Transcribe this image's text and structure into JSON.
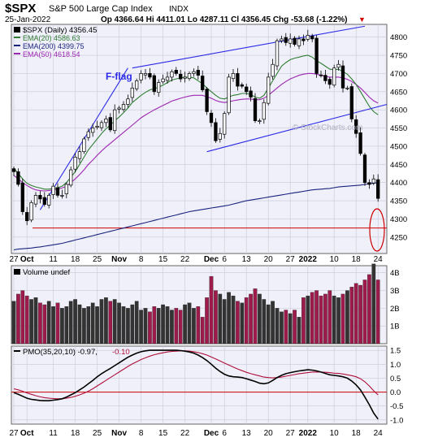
{
  "header": {
    "symbol": "$SPX",
    "name": "S&P 500 Large Cap Index",
    "exchange": "INDX",
    "date": "25-Jan-2022",
    "quote": "Op 4366.64  Hi 4411.01  Lo 4287.11  Cl 4356.45  Chg -53.68 (-1.22%)",
    "chg_arrow": "▼",
    "watermark": "© StockCharts.com"
  },
  "colors": {
    "bg": "#ffffff",
    "panel": "#f0f0fa",
    "grid": "#c8c8d8",
    "border": "#666666",
    "ema20": "#2e7d32",
    "ema200": "#1a237e",
    "ema50": "#9c27b0",
    "trend": "#2a2ae6",
    "support": "#cc0000",
    "vol_up": "#333333",
    "vol_down": "#9c1b4a",
    "pmo": "#000000",
    "pmo_signal": "#b0103a"
  },
  "chart_data": [
    {
      "type": "candlestick",
      "legend": [
        {
          "label": "$SPX (Daily) 4356.45",
          "color": "#000000"
        },
        {
          "label": "EMA(20) 4586.63",
          "color": "#2e7d32"
        },
        {
          "label": "EMA(200) 4399.75",
          "color": "#1a237e"
        },
        {
          "label": "EMA(50) 4618.54",
          "color": "#9c27b0"
        }
      ],
      "annotation": "F-flag",
      "ylim": [
        4205,
        4835
      ],
      "yticks": [
        4250,
        4300,
        4350,
        4400,
        4450,
        4500,
        4550,
        4600,
        4650,
        4700,
        4750,
        4800
      ],
      "xticks": [
        {
          "label": "27",
          "i": 0
        },
        {
          "label": "Oct",
          "i": 3,
          "bold": true
        },
        {
          "label": "11",
          "i": 9
        },
        {
          "label": "18",
          "i": 14
        },
        {
          "label": "25",
          "i": 19
        },
        {
          "label": "Nov",
          "i": 24,
          "bold": true
        },
        {
          "label": "8",
          "i": 29
        },
        {
          "label": "15",
          "i": 34
        },
        {
          "label": "22",
          "i": 39
        },
        {
          "label": "Dec",
          "i": 45,
          "bold": true
        },
        {
          "label": "6",
          "i": 48
        },
        {
          "label": "13",
          "i": 53
        },
        {
          "label": "20",
          "i": 58
        },
        {
          "label": "27",
          "i": 63
        },
        {
          "label": "2022",
          "i": 67,
          "bold": true
        },
        {
          "label": "10",
          "i": 73
        },
        {
          "label": "18",
          "i": 78
        },
        {
          "label": "24",
          "i": 83
        }
      ],
      "support_level": 4275,
      "trendlines": [
        {
          "i1": 27,
          "v1": 4715,
          "i2": 80,
          "v2": 4830
        },
        {
          "i1": 44,
          "v1": 4485,
          "i2": 85,
          "v2": 4615
        },
        {
          "i1": 6,
          "v1": 4325,
          "i2": 26,
          "v2": 4715
        }
      ],
      "closes": [
        4430,
        4395,
        4320,
        4295,
        4345,
        4365,
        4355,
        4340,
        4365,
        4390,
        4365,
        4365,
        4395,
        4435,
        4470,
        4485,
        4520,
        4540,
        4550,
        4555,
        4565,
        4575,
        4545,
        4600,
        4605,
        4615,
        4630,
        4660,
        4680,
        4700,
        4700,
        4690,
        4650,
        4675,
        4685,
        4690,
        4705,
        4700,
        4685,
        4690,
        4700,
        4705,
        4695,
        4655,
        4595,
        4565,
        4515,
        4535,
        4590,
        4690,
        4700,
        4665,
        4665,
        4650,
        4635,
        4570,
        4570,
        4620,
        4690,
        4725,
        4790,
        4795,
        4785,
        4795,
        4780,
        4795,
        4790,
        4805,
        4795,
        4700,
        4695,
        4680,
        4670,
        4715,
        4725,
        4660,
        4660,
        4575,
        4535,
        4480,
        4400,
        4395,
        4410,
        4356.45
      ],
      "ema20": [
        4440,
        4425,
        4410,
        4398,
        4392,
        4388,
        4385,
        4382,
        4382,
        4384,
        4386,
        4390,
        4400,
        4415,
        4430,
        4450,
        4470,
        4490,
        4505,
        4520,
        4535,
        4548,
        4558,
        4570,
        4580,
        4592,
        4605,
        4620,
        4630,
        4640,
        4648,
        4655,
        4658,
        4662,
        4668,
        4675,
        4682,
        4685,
        4688,
        4690,
        4690,
        4688,
        4680,
        4672,
        4660,
        4650,
        4640,
        4632,
        4630,
        4635,
        4640,
        4642,
        4645,
        4645,
        4642,
        4635,
        4632,
        4640,
        4660,
        4680,
        4700,
        4720,
        4730,
        4738,
        4742,
        4745,
        4748,
        4750,
        4745,
        4735,
        4728,
        4720,
        4712,
        4710,
        4712,
        4705,
        4698,
        4685,
        4670,
        4650,
        4630,
        4610,
        4595,
        4586.63
      ],
      "ema50": [
        4420,
        4410,
        4400,
        4392,
        4385,
        4380,
        4378,
        4377,
        4378,
        4380,
        4382,
        4385,
        4390,
        4400,
        4410,
        4422,
        4435,
        4450,
        4462,
        4475,
        4487,
        4498,
        4508,
        4518,
        4528,
        4538,
        4548,
        4558,
        4568,
        4578,
        4586,
        4593,
        4600,
        4606,
        4612,
        4618,
        4624,
        4628,
        4632,
        4635,
        4638,
        4640,
        4640,
        4640,
        4636,
        4632,
        4626,
        4622,
        4620,
        4622,
        4625,
        4627,
        4629,
        4630,
        4630,
        4628,
        4628,
        4632,
        4640,
        4650,
        4660,
        4670,
        4678,
        4685,
        4690,
        4695,
        4698,
        4700,
        4700,
        4698,
        4695,
        4692,
        4690,
        4690,
        4690,
        4688,
        4684,
        4678,
        4670,
        4660,
        4648,
        4635,
        4625,
        4618.54
      ],
      "ema200": [
        4215,
        4217,
        4218,
        4219,
        4220,
        4222,
        4223,
        4225,
        4227,
        4229,
        4231,
        4233,
        4236,
        4239,
        4242,
        4245,
        4248,
        4251,
        4254,
        4257,
        4260,
        4263,
        4266,
        4269,
        4272,
        4275,
        4278,
        4281,
        4284,
        4287,
        4290,
        4293,
        4296,
        4299,
        4302,
        4305,
        4308,
        4311,
        4314,
        4317,
        4320,
        4322,
        4324,
        4326,
        4328,
        4330,
        4332,
        4334,
        4336,
        4338,
        4341,
        4344,
        4347,
        4350,
        4352,
        4354,
        4356,
        4358,
        4360,
        4362,
        4364,
        4366,
        4368,
        4370,
        4372,
        4374,
        4376,
        4378,
        4380,
        4381,
        4382,
        4383,
        4384,
        4386,
        4388,
        4389,
        4390,
        4391,
        4392,
        4393,
        4395,
        4397,
        4398,
        4399.75
      ]
    },
    {
      "type": "bar",
      "title": "Volume undef",
      "ylim": [
        0,
        4.4
      ],
      "yticks": [
        {
          "v": 1,
          "label": "1B"
        },
        {
          "v": 2,
          "label": "2B"
        },
        {
          "v": 3,
          "label": "3B"
        },
        {
          "v": 4,
          "label": "4B"
        }
      ],
      "values": [
        2.4,
        2.8,
        3.0,
        2.7,
        2.5,
        2.6,
        2.3,
        2.2,
        2.4,
        2.1,
        2.3,
        2.0,
        2.1,
        2.4,
        2.5,
        2.2,
        2.0,
        2.1,
        2.3,
        2.1,
        2.5,
        2.6,
        2.4,
        2.5,
        2.3,
        2.1,
        2.0,
        2.2,
        2.4,
        1.9,
        2.0,
        1.8,
        2.1,
        2.0,
        2.2,
        2.1,
        1.9,
        2.0,
        1.9,
        2.2,
        2.3,
        2.0,
        2.1,
        1.5,
        2.6,
        3.8,
        3.0,
        2.8,
        2.5,
        2.9,
        2.7,
        2.4,
        2.3,
        2.6,
        2.8,
        3.1,
        2.8,
        2.5,
        2.2,
        2.4,
        2.0,
        1.8,
        1.9,
        1.7,
        1.9,
        1.5,
        2.6,
        2.7,
        2.9,
        3.0,
        2.7,
        2.8,
        3.0,
        2.7,
        2.6,
        2.8,
        3.0,
        3.2,
        3.4,
        3.3,
        3.6,
        3.9,
        4.5,
        3.6
      ]
    },
    {
      "type": "line",
      "title": "PMO(35,20,10) -0.97, -0.10",
      "legend": [
        {
          "label": "PMO(35,20,10) -0.97,",
          "color": "#000000"
        },
        {
          "label": "-0.10",
          "color": "#b0103a"
        }
      ],
      "ylim": [
        -1.15,
        1.65
      ],
      "yticks": [
        {
          "v": 1.5,
          "label": "1.5"
        },
        {
          "v": 1.0,
          "label": "1.0"
        },
        {
          "v": 0.5,
          "label": "0.5"
        },
        {
          "v": 0.0,
          "label": "0.0"
        },
        {
          "v": -0.5,
          "label": "-0.5"
        },
        {
          "v": -1.0,
          "label": "-1.0"
        }
      ],
      "pmo": [
        -0.02,
        -0.08,
        -0.15,
        -0.22,
        -0.26,
        -0.28,
        -0.3,
        -0.31,
        -0.31,
        -0.29,
        -0.27,
        -0.24,
        -0.18,
        -0.1,
        -0.02,
        0.08,
        0.18,
        0.3,
        0.42,
        0.55,
        0.66,
        0.76,
        0.85,
        0.95,
        1.05,
        1.15,
        1.25,
        1.33,
        1.4,
        1.45,
        1.48,
        1.5,
        1.5,
        1.5,
        1.5,
        1.5,
        1.5,
        1.5,
        1.49,
        1.47,
        1.44,
        1.4,
        1.33,
        1.24,
        1.13,
        1.0,
        0.86,
        0.74,
        0.64,
        0.58,
        0.55,
        0.54,
        0.52,
        0.48,
        0.43,
        0.38,
        0.32,
        0.3,
        0.33,
        0.42,
        0.52,
        0.6,
        0.66,
        0.7,
        0.73,
        0.76,
        0.78,
        0.8,
        0.79,
        0.76,
        0.72,
        0.67,
        0.62,
        0.6,
        0.58,
        0.55,
        0.5,
        0.4,
        0.26,
        0.08,
        -0.18,
        -0.45,
        -0.75,
        -0.97
      ],
      "signal": [
        0.12,
        0.08,
        0.03,
        -0.03,
        -0.08,
        -0.13,
        -0.17,
        -0.2,
        -0.22,
        -0.23,
        -0.24,
        -0.24,
        -0.22,
        -0.19,
        -0.15,
        -0.1,
        -0.04,
        0.03,
        0.12,
        0.22,
        0.32,
        0.42,
        0.52,
        0.62,
        0.72,
        0.82,
        0.92,
        1.01,
        1.09,
        1.17,
        1.23,
        1.29,
        1.34,
        1.38,
        1.41,
        1.44,
        1.46,
        1.47,
        1.48,
        1.48,
        1.47,
        1.45,
        1.42,
        1.38,
        1.33,
        1.26,
        1.19,
        1.12,
        1.04,
        0.97,
        0.9,
        0.83,
        0.77,
        0.71,
        0.66,
        0.62,
        0.58,
        0.54,
        0.52,
        0.51,
        0.52,
        0.54,
        0.57,
        0.6,
        0.63,
        0.66,
        0.68,
        0.7,
        0.72,
        0.72,
        0.72,
        0.71,
        0.7,
        0.68,
        0.67,
        0.65,
        0.62,
        0.59,
        0.55,
        0.48,
        0.37,
        0.22,
        0.05,
        -0.1
      ]
    }
  ]
}
